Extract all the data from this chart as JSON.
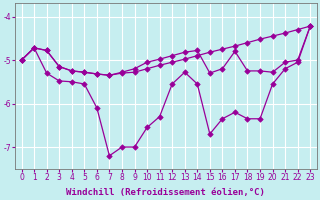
{
  "xlabel": "Windchill (Refroidissement éolien,°C)",
  "background_color": "#c6eef0",
  "line_color": "#990099",
  "grid_color": "#ffffff",
  "xlim": [
    -0.5,
    23.5
  ],
  "ylim": [
    -7.5,
    -3.7
  ],
  "yticks": [
    -7,
    -6,
    -5,
    -4
  ],
  "xticks": [
    0,
    1,
    2,
    3,
    4,
    5,
    6,
    7,
    8,
    9,
    10,
    11,
    12,
    13,
    14,
    15,
    16,
    17,
    18,
    19,
    20,
    21,
    22,
    23
  ],
  "lineA_x": [
    0,
    1,
    2,
    3,
    4,
    5,
    6,
    7,
    8,
    9,
    10,
    11,
    12,
    13,
    14,
    15,
    16,
    17,
    18,
    19,
    20,
    21,
    22,
    23
  ],
  "lineA_y": [
    -5.0,
    -4.72,
    -4.78,
    -5.15,
    -5.25,
    -5.28,
    -5.32,
    -5.35,
    -5.3,
    -5.28,
    -5.2,
    -5.12,
    -5.05,
    -4.98,
    -4.9,
    -4.82,
    -4.75,
    -4.68,
    -4.6,
    -4.52,
    -4.45,
    -4.38,
    -4.3,
    -4.22
  ],
  "lineB_x": [
    0,
    1,
    2,
    3,
    4,
    5,
    6,
    7,
    8,
    9,
    10,
    11,
    12,
    13,
    14,
    15,
    16,
    17,
    18,
    19,
    20,
    21,
    22,
    23
  ],
  "lineB_y": [
    -5.0,
    -4.72,
    -4.78,
    -5.15,
    -5.25,
    -5.28,
    -5.32,
    -5.35,
    -5.28,
    -5.2,
    -5.05,
    -4.98,
    -4.9,
    -4.82,
    -4.78,
    -5.3,
    -5.2,
    -4.8,
    -5.25,
    -5.25,
    -5.28,
    -5.05,
    -5.0,
    -4.22
  ],
  "lineC_x": [
    0,
    1,
    2,
    3,
    4,
    5,
    6,
    7,
    8,
    9,
    10,
    11,
    12,
    13,
    14,
    15,
    16,
    17,
    18,
    19,
    20,
    21,
    22,
    23
  ],
  "lineC_y": [
    -5.0,
    -4.72,
    -5.3,
    -5.48,
    -5.5,
    -5.55,
    -6.1,
    -7.2,
    -7.0,
    -7.0,
    -6.55,
    -6.3,
    -5.55,
    -5.28,
    -5.55,
    -6.7,
    -6.35,
    -6.2,
    -6.35,
    -6.35,
    -5.55,
    -5.2,
    -5.05,
    -4.22
  ],
  "marker": "D",
  "markersize": 2.8,
  "linewidth": 0.9,
  "xlabel_fontsize": 6.5,
  "tick_fontsize": 5.5,
  "figsize": [
    3.2,
    2.0
  ],
  "dpi": 100
}
